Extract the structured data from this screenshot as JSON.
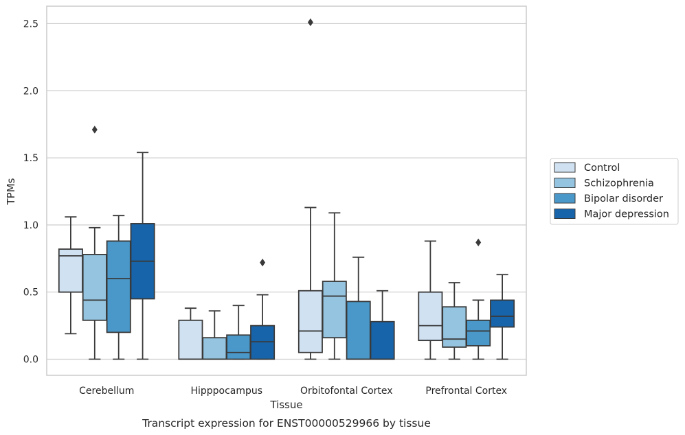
{
  "chart_data": {
    "type": "boxplot",
    "xlabel": "Tissue",
    "ylabel": "TPMs",
    "caption": "Transcript expression for ENST00000529966 by tissue",
    "ylim": [
      -0.12,
      2.63
    ],
    "yticks": [
      0.0,
      0.5,
      1.0,
      1.5,
      2.0,
      2.5
    ],
    "ytick_labels": [
      "0.0",
      "0.5",
      "1.0",
      "1.5",
      "2.0",
      "2.5"
    ],
    "grid": "horizontal",
    "legend_position": "right",
    "categories": [
      "Cerebellum",
      "Hipppocampus",
      "Orbitofontal Cortex",
      "Prefrontal Cortex"
    ],
    "series": [
      {
        "name": "Control",
        "color": "#d0e1f2",
        "boxes": [
          {
            "whislo": 0.19,
            "q1": 0.5,
            "med": 0.77,
            "q3": 0.82,
            "whishi": 1.06,
            "fliers": []
          },
          {
            "whislo": 0.0,
            "q1": 0.0,
            "med": 0.0,
            "q3": 0.29,
            "whishi": 0.38,
            "fliers": []
          },
          {
            "whislo": 0.0,
            "q1": 0.05,
            "med": 0.21,
            "q3": 0.51,
            "whishi": 1.13,
            "fliers": [
              2.51
            ]
          },
          {
            "whislo": 0.0,
            "q1": 0.14,
            "med": 0.25,
            "q3": 0.5,
            "whishi": 0.88,
            "fliers": []
          }
        ]
      },
      {
        "name": "Schizophrenia",
        "color": "#94c4df",
        "boxes": [
          {
            "whislo": 0.0,
            "q1": 0.29,
            "med": 0.44,
            "q3": 0.78,
            "whishi": 0.98,
            "fliers": [
              1.71
            ]
          },
          {
            "whislo": 0.0,
            "q1": 0.0,
            "med": 0.0,
            "q3": 0.16,
            "whishi": 0.36,
            "fliers": []
          },
          {
            "whislo": 0.0,
            "q1": 0.16,
            "med": 0.47,
            "q3": 0.58,
            "whishi": 1.09,
            "fliers": []
          },
          {
            "whislo": 0.0,
            "q1": 0.09,
            "med": 0.15,
            "q3": 0.39,
            "whishi": 0.57,
            "fliers": []
          }
        ]
      },
      {
        "name": "Bipolar disorder",
        "color": "#4a98c9",
        "boxes": [
          {
            "whislo": 0.0,
            "q1": 0.2,
            "med": 0.6,
            "q3": 0.88,
            "whishi": 1.07,
            "fliers": []
          },
          {
            "whislo": 0.0,
            "q1": 0.0,
            "med": 0.05,
            "q3": 0.18,
            "whishi": 0.4,
            "fliers": []
          },
          {
            "whislo": 0.0,
            "q1": 0.0,
            "med": 0.0,
            "q3": 0.43,
            "whishi": 0.76,
            "fliers": []
          },
          {
            "whislo": 0.0,
            "q1": 0.1,
            "med": 0.21,
            "q3": 0.29,
            "whishi": 0.44,
            "fliers": [
              0.87
            ]
          }
        ]
      },
      {
        "name": "Major depression",
        "color": "#1764ab",
        "boxes": [
          {
            "whislo": 0.0,
            "q1": 0.45,
            "med": 0.73,
            "q3": 1.01,
            "whishi": 1.54,
            "fliers": []
          },
          {
            "whislo": 0.0,
            "q1": 0.0,
            "med": 0.13,
            "q3": 0.25,
            "whishi": 0.48,
            "fliers": [
              0.72
            ]
          },
          {
            "whislo": 0.0,
            "q1": 0.0,
            "med": 0.0,
            "q3": 0.28,
            "whishi": 0.51,
            "fliers": []
          },
          {
            "whislo": 0.0,
            "q1": 0.24,
            "med": 0.32,
            "q3": 0.44,
            "whishi": 0.63,
            "fliers": []
          }
        ]
      }
    ]
  },
  "colors": {
    "grid": "#cccccc",
    "frame": "#cccccc",
    "box_edge": "#3a3a3a",
    "text": "#262626"
  }
}
